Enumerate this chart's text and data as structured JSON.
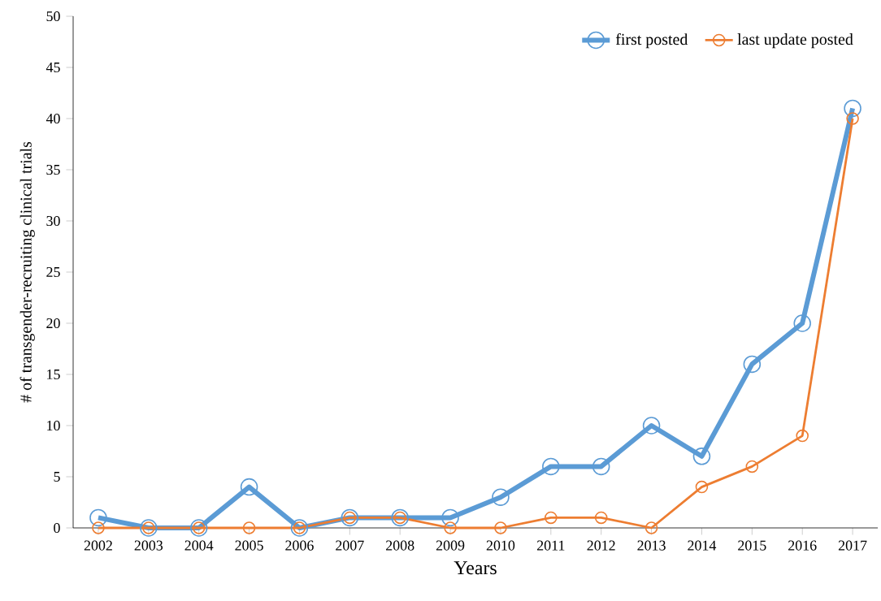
{
  "chart_data": {
    "type": "line",
    "xlabel": "Years",
    "ylabel": "# of transgender-recruiting clinical trials",
    "categories": [
      "2002",
      "2003",
      "2004",
      "2005",
      "2006",
      "2007",
      "2008",
      "2009",
      "2010",
      "2011",
      "2012",
      "2013",
      "2014",
      "2015",
      "2016",
      "2017"
    ],
    "series": [
      {
        "name": "first posted",
        "color": "#5b9bd5",
        "values": [
          1,
          0,
          0,
          4,
          0,
          1,
          1,
          1,
          3,
          6,
          6,
          10,
          7,
          16,
          20,
          41
        ]
      },
      {
        "name": "last update posted",
        "color": "#ed7d31",
        "values": [
          0,
          0,
          0,
          0,
          0,
          1,
          1,
          0,
          0,
          1,
          1,
          0,
          4,
          6,
          9,
          40
        ]
      }
    ],
    "ylim": [
      0,
      50
    ],
    "yticks": [
      0,
      5,
      10,
      15,
      20,
      25,
      30,
      35,
      40,
      45,
      50
    ],
    "marker": "circle",
    "line_style": "solid",
    "legend": "top right",
    "grid": false
  }
}
